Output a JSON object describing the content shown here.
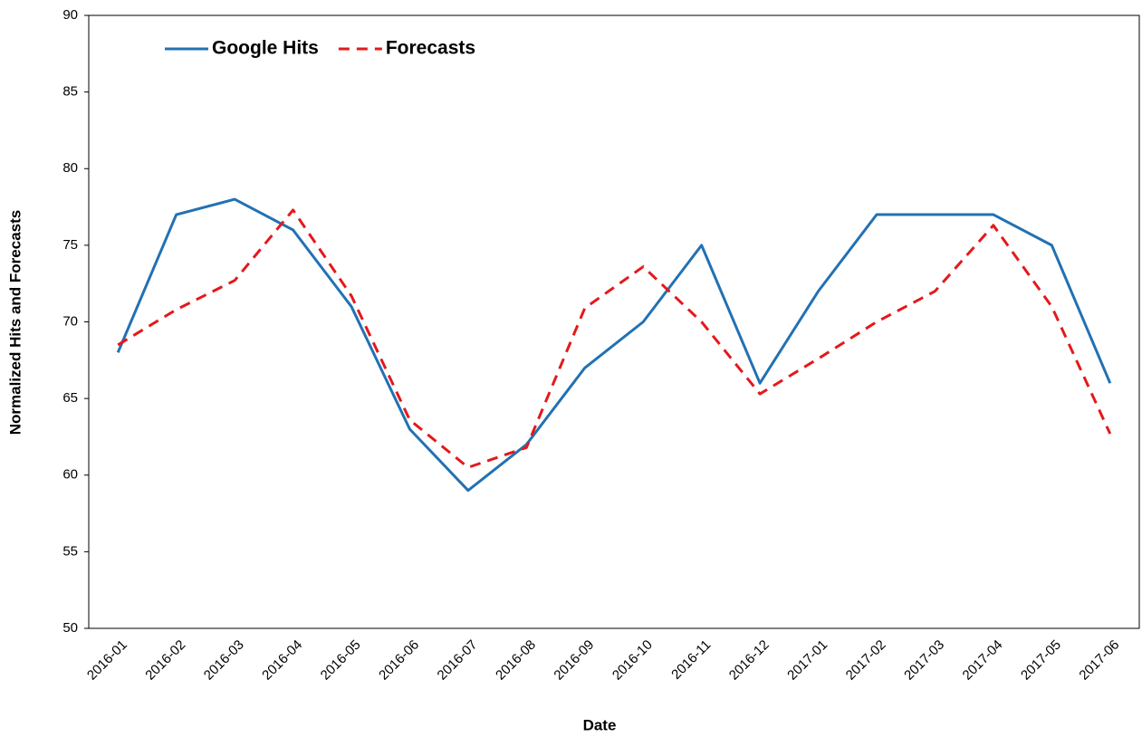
{
  "chart_data": {
    "type": "line",
    "xlabel": "Date",
    "ylabel": "Normalized Hits and Forecasts",
    "categories": [
      "2016-01",
      "2016-02",
      "2016-03",
      "2016-04",
      "2016-05",
      "2016-06",
      "2016-07",
      "2016-08",
      "2016-09",
      "2016-10",
      "2016-11",
      "2016-12",
      "2017-01",
      "2017-02",
      "2017-03",
      "2017-04",
      "2017-05",
      "2017-06"
    ],
    "series": [
      {
        "name": "Google Hits",
        "color": "#2271b3",
        "dashed": false,
        "values": [
          68,
          77,
          78,
          76,
          71,
          63,
          59,
          62,
          67,
          70,
          75,
          66,
          72,
          77,
          77,
          77,
          75,
          66
        ]
      },
      {
        "name": "Forecasts",
        "color": "#e3191c",
        "dashed": true,
        "values": [
          68.5,
          70.8,
          72.7,
          77.3,
          71.7,
          63.6,
          60.5,
          61.8,
          70.9,
          73.6,
          70,
          65.3,
          67.6,
          70,
          72,
          76.3,
          71,
          62.7
        ]
      }
    ],
    "ylim": [
      50,
      90
    ],
    "yticks": [
      50,
      55,
      60,
      65,
      70,
      75,
      80,
      85,
      90
    ],
    "grid": false,
    "legend": "upper left"
  }
}
